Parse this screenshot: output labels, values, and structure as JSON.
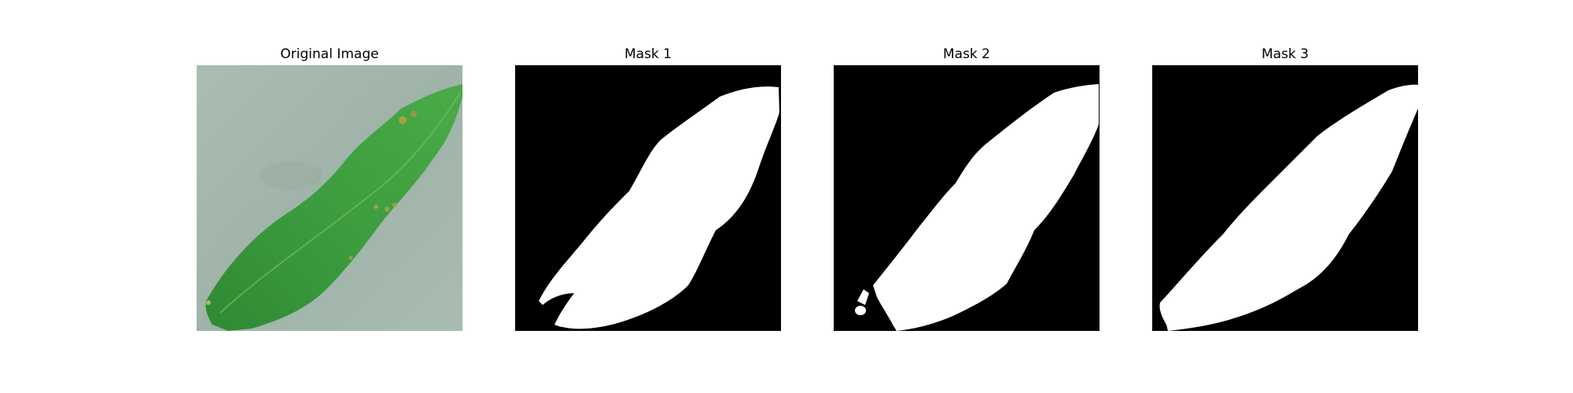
{
  "panels": [
    {
      "title": "Original Image"
    },
    {
      "title": "Mask 1"
    },
    {
      "title": "Mask 2"
    },
    {
      "title": "Mask 3"
    }
  ]
}
